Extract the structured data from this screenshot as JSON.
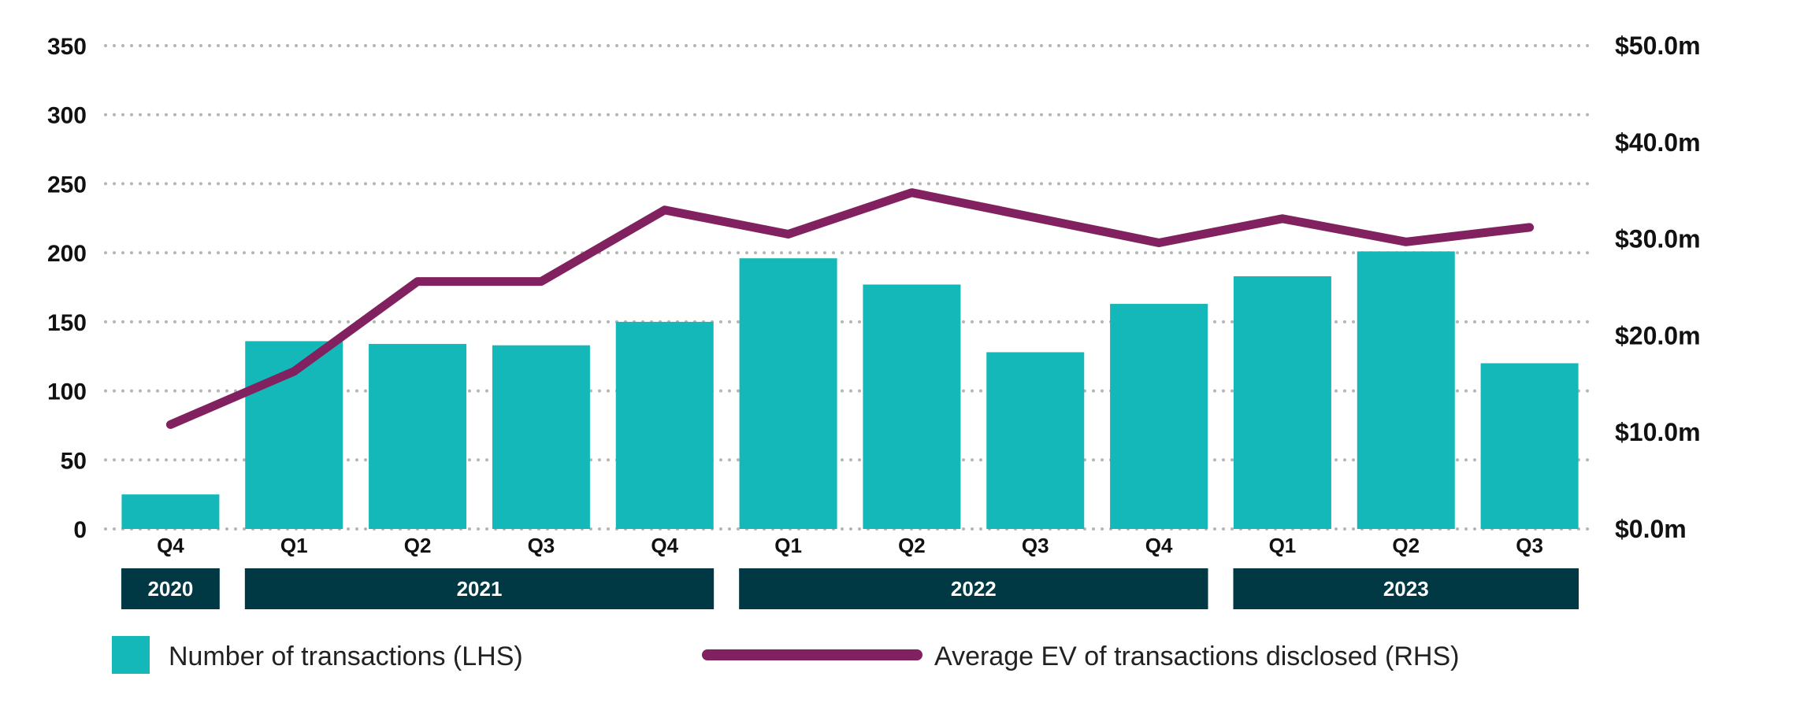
{
  "colors": {
    "bar": "#14b8b8",
    "line": "#82215f",
    "grid": "#b5b5b5",
    "year_band": "#003844",
    "text": "#111111"
  },
  "chart_data": {
    "type": "bar",
    "title": "",
    "xlabel": "",
    "ylabel": "",
    "categories": [
      "Q4",
      "Q1",
      "Q2",
      "Q3",
      "Q4",
      "Q1",
      "Q2",
      "Q3",
      "Q4",
      "Q1",
      "Q2",
      "Q3"
    ],
    "year_groups": [
      {
        "label": "2020",
        "start": 0,
        "end": 0
      },
      {
        "label": "2021",
        "start": 1,
        "end": 4
      },
      {
        "label": "2022",
        "start": 5,
        "end": 8
      },
      {
        "label": "2023",
        "start": 9,
        "end": 11
      }
    ],
    "series": [
      {
        "name": "Number of transactions (LHS)",
        "type": "bar",
        "axis": "left",
        "values": [
          25,
          136,
          134,
          133,
          150,
          196,
          177,
          128,
          163,
          183,
          201,
          120
        ]
      },
      {
        "name": "Average EV of transactions disclosed (RHS)",
        "type": "line",
        "axis": "right",
        "values": [
          10.8,
          16.3,
          25.6,
          25.6,
          33.0,
          30.5,
          34.8,
          32.2,
          29.6,
          32.1,
          29.7,
          31.2
        ]
      }
    ],
    "y_left": {
      "range": [
        0,
        350
      ],
      "ticks": [
        0,
        50,
        100,
        150,
        200,
        250,
        300,
        350
      ],
      "tick_labels": [
        "0",
        "50",
        "100",
        "150",
        "200",
        "250",
        "300",
        "350"
      ]
    },
    "y_right": {
      "range": [
        0,
        50
      ],
      "ticks": [
        0,
        10,
        20,
        30,
        40,
        50
      ],
      "tick_labels": [
        "$0.0m",
        "$10.0m",
        "$20.0m",
        "$30.0m",
        "$40.0m",
        "$50.0m"
      ]
    },
    "grid": "horizontal dotted",
    "legend_position": "bottom-left"
  },
  "legend": {
    "bar_label": "Number of transactions (LHS)",
    "line_label": "Average EV of transactions disclosed (RHS)"
  }
}
